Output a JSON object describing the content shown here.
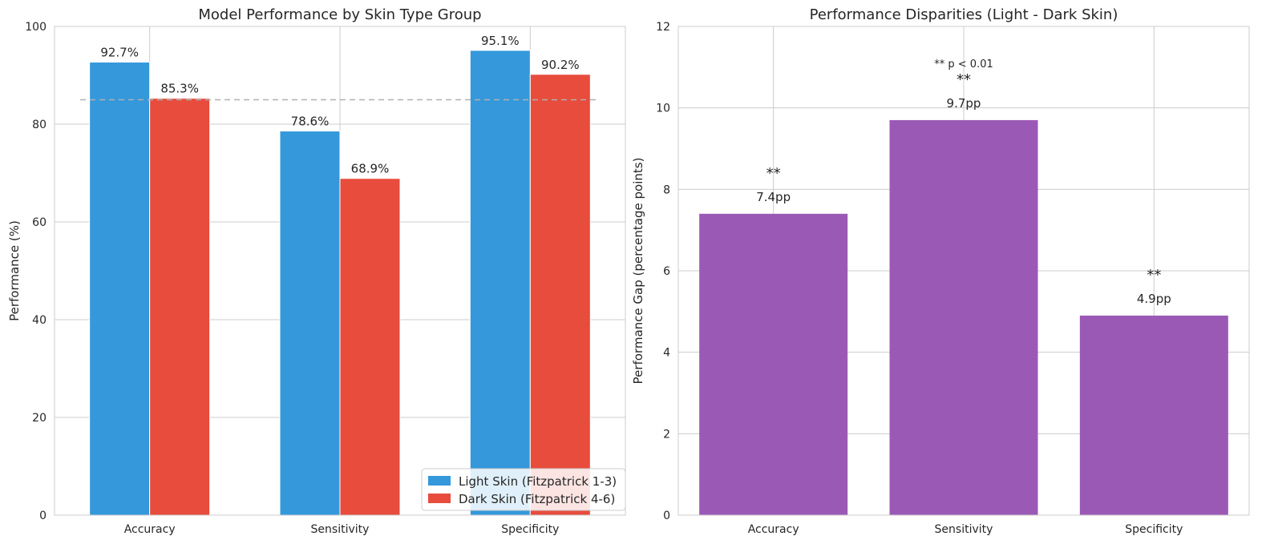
{
  "chart_data": [
    {
      "type": "bar",
      "title": "Model Performance by Skin Type Group",
      "xlabel": "",
      "ylabel": "Performance (%)",
      "ylim": [
        0,
        100
      ],
      "yticks": [
        0,
        20,
        40,
        60,
        80,
        100
      ],
      "categories": [
        "Accuracy",
        "Sensitivity",
        "Specificity"
      ],
      "series": [
        {
          "name": "Light Skin (Fitzpatrick 1-3)",
          "color": "#3498db",
          "values": [
            92.7,
            78.6,
            95.1
          ],
          "labels": [
            "92.7%",
            "78.6%",
            "95.1%"
          ]
        },
        {
          "name": "Dark Skin (Fitzpatrick 4-6)",
          "color": "#e74c3c",
          "values": [
            85.3,
            68.9,
            90.2
          ],
          "labels": [
            "85.3%",
            "68.9%",
            "90.2%"
          ]
        }
      ],
      "reference_line": {
        "value": 85,
        "style": "dashed",
        "color": "#b0b0b0"
      },
      "grid": true,
      "legend_position": "lower right"
    },
    {
      "type": "bar",
      "title": "Performance Disparities (Light - Dark Skin)",
      "xlabel": "",
      "ylabel": "Performance Gap (percentage points)",
      "ylim": [
        0,
        12
      ],
      "yticks": [
        0,
        2,
        4,
        6,
        8,
        10,
        12
      ],
      "categories": [
        "Accuracy",
        "Sensitivity",
        "Specificity"
      ],
      "values": [
        7.4,
        9.7,
        4.9
      ],
      "labels": [
        "7.4pp",
        "9.7pp",
        "4.9pp"
      ],
      "significance": [
        "**",
        "**",
        "**"
      ],
      "color": "#9b59b6",
      "annotation": "** p < 0.01",
      "grid": true
    }
  ]
}
